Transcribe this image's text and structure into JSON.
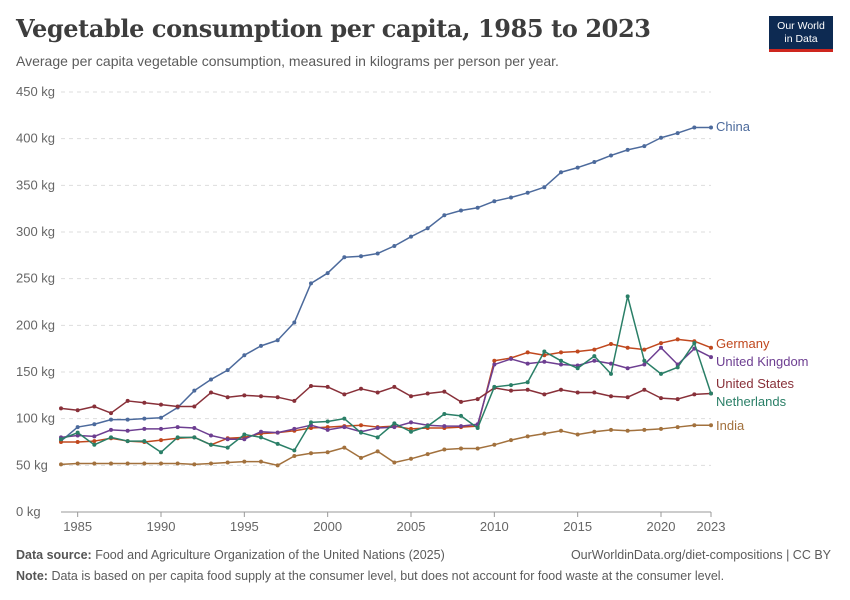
{
  "header": {
    "title": "Vegetable consumption per capita, 1985 to 2023",
    "subtitle": "Average per capita vegetable consumption, measured in kilograms per person per year.",
    "logo_line1": "Our World",
    "logo_line2": "in Data"
  },
  "footer": {
    "source_label": "Data source:",
    "source_text": "Food and Agriculture Organization of the United Nations (2025)",
    "url_text": "OurWorldinData.org/diet-compositions | CC BY",
    "note_label": "Note:",
    "note_text": "Data is based on per capita food supply at the consumer level, but does not account for food waste at the consumer level."
  },
  "chart_data": {
    "type": "line",
    "title": "Vegetable consumption per capita, 1985 to 2023",
    "xlabel": "",
    "ylabel": "",
    "xlim": [
      1984,
      2023
    ],
    "ylim": [
      0,
      450
    ],
    "grid": "horizontal dashed",
    "legend": "inline labels at right end of lines",
    "y_ticks": [
      0,
      50,
      100,
      150,
      200,
      250,
      300,
      350,
      400,
      450
    ],
    "y_tick_labels": [
      "0 kg",
      "50 kg",
      "100 kg",
      "150 kg",
      "200 kg",
      "250 kg",
      "300 kg",
      "350 kg",
      "400 kg",
      "450 kg"
    ],
    "x_ticks": [
      1985,
      1990,
      1995,
      2000,
      2005,
      2010,
      2015,
      2020,
      2023
    ],
    "x_tick_labels": [
      "1985",
      "1990",
      "1995",
      "2000",
      "2005",
      "2010",
      "2015",
      "2020",
      "2023"
    ],
    "x": [
      1984,
      1985,
      1986,
      1987,
      1988,
      1989,
      1990,
      1991,
      1992,
      1993,
      1994,
      1995,
      1996,
      1997,
      1998,
      1999,
      2000,
      2001,
      2002,
      2003,
      2004,
      2005,
      2006,
      2007,
      2008,
      2009,
      2010,
      2011,
      2012,
      2013,
      2014,
      2015,
      2016,
      2017,
      2018,
      2019,
      2020,
      2021,
      2022,
      2023
    ],
    "series": [
      {
        "name": "China",
        "color": "#4c6a9c",
        "values": [
          76,
          91,
          94,
          99,
          99,
          100,
          101,
          112,
          130,
          142,
          152,
          168,
          178,
          184,
          203,
          245,
          256,
          273,
          274,
          277,
          285,
          295,
          304,
          318,
          323,
          326,
          333,
          337,
          342,
          348,
          364,
          369,
          375,
          382,
          388,
          392,
          401,
          406,
          412,
          412
        ]
      },
      {
        "name": "Germany",
        "color": "#c0481e",
        "values": [
          75,
          75,
          76,
          79,
          76,
          75,
          77,
          79,
          80,
          72,
          79,
          80,
          84,
          85,
          87,
          90,
          91,
          92,
          93,
          91,
          92,
          89,
          90,
          90,
          91,
          92,
          162,
          165,
          171,
          168,
          171,
          172,
          174,
          180,
          176,
          174,
          181,
          185,
          183,
          176
        ]
      },
      {
        "name": "United Kingdom",
        "color": "#6d3e91",
        "values": [
          80,
          82,
          81,
          88,
          87,
          89,
          89,
          91,
          90,
          82,
          78,
          78,
          86,
          85,
          89,
          93,
          88,
          91,
          86,
          90,
          91,
          96,
          93,
          92,
          92,
          94,
          158,
          164,
          159,
          161,
          158,
          157,
          162,
          159,
          154,
          158,
          176,
          158,
          175,
          166
        ]
      },
      {
        "name": "United States",
        "color": "#883039",
        "values": [
          111,
          109,
          113,
          106,
          119,
          117,
          115,
          113,
          113,
          128,
          123,
          125,
          124,
          123,
          119,
          135,
          134,
          126,
          132,
          128,
          134,
          124,
          127,
          129,
          118,
          121,
          133,
          130,
          131,
          126,
          131,
          128,
          128,
          124,
          123,
          131,
          122,
          121,
          126,
          127
        ]
      },
      {
        "name": "Netherlands",
        "color": "#2a7f67",
        "values": [
          78,
          85,
          72,
          80,
          76,
          76,
          64,
          80,
          80,
          72,
          69,
          83,
          80,
          73,
          66,
          96,
          97,
          100,
          85,
          80,
          95,
          86,
          92,
          105,
          103,
          90,
          134,
          136,
          139,
          172,
          162,
          154,
          167,
          148,
          231,
          162,
          148,
          155,
          181,
          127
        ]
      },
      {
        "name": "India",
        "color": "#a2713d",
        "values": [
          51,
          52,
          52,
          52,
          52,
          52,
          52,
          52,
          51,
          52,
          53,
          54,
          54,
          50,
          60,
          63,
          64,
          69,
          58,
          65,
          53,
          57,
          62,
          67,
          68,
          68,
          72,
          77,
          81,
          84,
          87,
          83,
          86,
          88,
          87,
          88,
          89,
          91,
          93,
          93
        ]
      }
    ]
  }
}
